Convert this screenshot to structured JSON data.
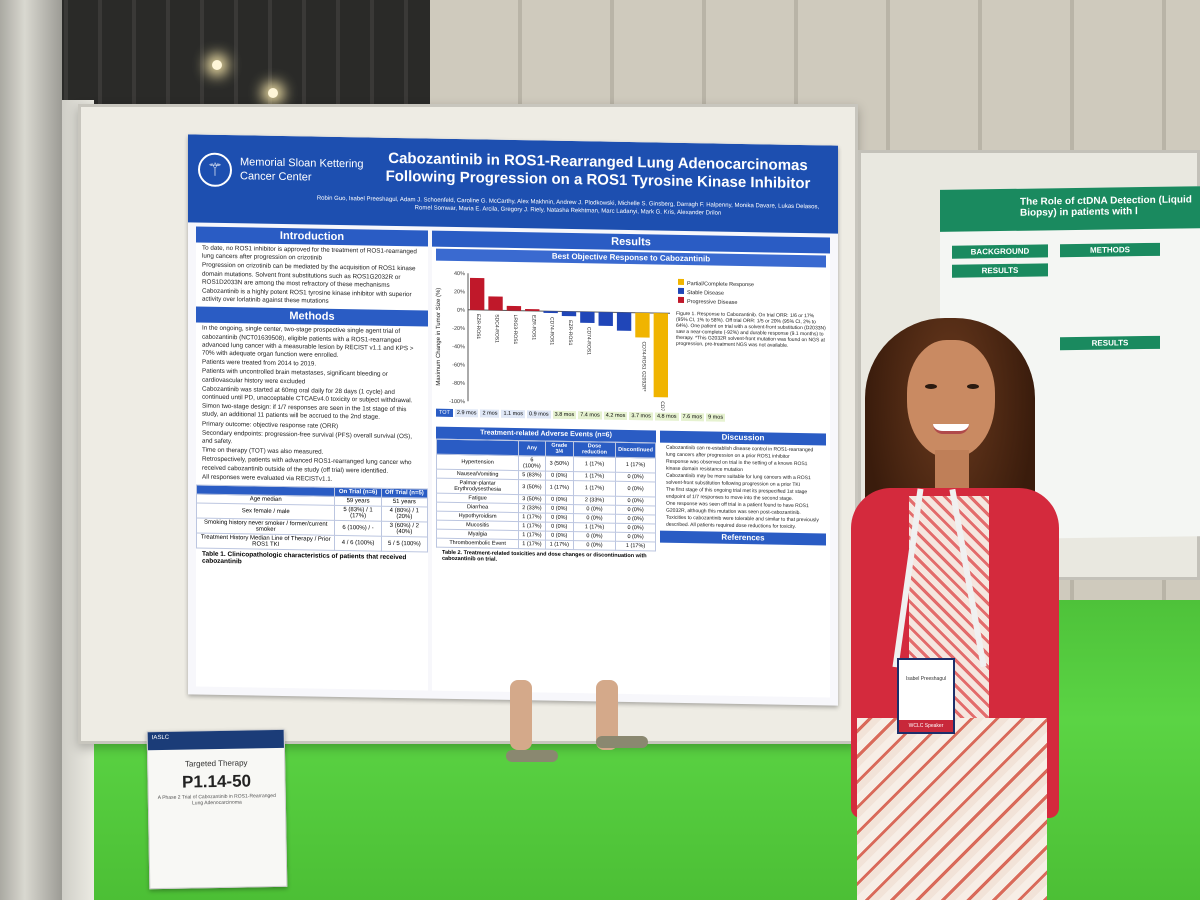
{
  "poster": {
    "institution": "Memorial Sloan Kettering Cancer Center",
    "title_line1": "Cabozantinib in ROS1-Rearranged Lung Adenocarcinomas",
    "title_line2": "Following Progression on a ROS1 Tyrosine Kinase Inhibitor",
    "authors": "Robin Guo, Isabel Preeshagul, Adam J. Schoenfeld, Caroline G. McCarthy, Alex Makhnin, Andrew J. Plodkowski, Michelle S. Ginsberg, Darragh F. Halpenny, Monika Davare, Lukas Delasos, Romel Somwar, Maria E. Arcila, Gregory J. Riely, Natasha Rekhtman, Marc Ladanyi, Mark G. Kris, Alexander Drilon",
    "sections": {
      "introduction": "Introduction",
      "methods": "Methods",
      "results": "Results",
      "discussion": "Discussion",
      "references": "References"
    },
    "intro_bullets": [
      "To date, no ROS1 inhibitor is approved for the treatment of ROS1-rearranged lung cancers after progression on crizotinib",
      "Progression on crizotinib can be mediated by the acquisition of ROS1 kinase domain mutations. Solvent front substitutions such as ROS1G2032R or ROS1D2033N are among the most refractory of these mechanisms",
      "Cabozantinib is a highly potent ROS1 tyrosine kinase inhibitor with superior activity over lorlatinib against these mutations"
    ],
    "methods_bullets": [
      "In the ongoing, single center, two-stage prospective single agent trial of cabozantinib (NCT01639508), eligible patients with a ROS1-rearranged advanced lung cancer with a measurable lesion by RECIST v1.1 and KPS > 70% with adequate organ function were enrolled.",
      "Patients were treated from 2014 to 2019.",
      "Patients with uncontrolled brain metastases, significant bleeding or cardiovascular history were excluded",
      "Cabozantinib was started at 60mg oral daily for 28 days (1 cycle) and continued until PD, unacceptable CTCAEv4.0 toxicity or subject withdrawal.",
      "Simon two-stage design: if 1/7 responses are seen in the 1st stage of this study, an additional 11 patients will be accrued to the 2nd stage.",
      "Primary outcome: objective response rate (ORR)",
      "Secondary endpoints: progression-free survival (PFS) overall survival (OS), and safety.",
      "Time on therapy (TOT) was also measured.",
      "Retrospectively, patients with advanced ROS1-rearranged lung cancer who received cabozantinib outside of the study (off trial) were identified.",
      "All responses were evaluated via RECISTv1.1."
    ],
    "table1": {
      "headers": [
        "",
        "On Trial (n=6)",
        "Off Trial (n=5)"
      ],
      "rows": [
        [
          "Age median",
          "59 years",
          "51 years"
        ],
        [
          "Sex female / male",
          "5 (83%) / 1 (17%)",
          "4 (80%) / 1 (20%)"
        ],
        [
          "Smoking history never smoker / former/current smoker",
          "6 (100%) / -",
          "3 (60%) / 2 (40%)"
        ],
        [
          "Treatment History Median Line of Therapy / Prior ROS1 TKI",
          "4 / 6 (100%)",
          "5 / 5 (100%)"
        ]
      ],
      "caption": "Table 1. Clinicopathologic characteristics of patients that received cabozantinib"
    },
    "figure1": {
      "title": "Best Objective Response to Cabozantinib",
      "ylabel": "Maximum Change in Tumor Size (%)",
      "legend": [
        "Partial/Complete Response",
        "Stable Disease",
        "Progressive Disease"
      ],
      "caption": "Figure 1. Response to Cabozantinib. On trial ORR: 1/6 or 17% (95% CI, 1% to 58%). Off trial ORR: 1/5 or 20% (95% CI, 2% to 64%). One patient on trial with a solvent-front substitution (D2033N) saw a near-complete (-92%) and durable response (9.1 months) to therapy. *This G2032R solvent-front mutation was found on NGS at progression, pre-treatment NGS was not available."
    },
    "tot_row": [
      "2.9 mos",
      "2 mos",
      "1.1 mos",
      "0.9 mos",
      "3.8 mos",
      "7.4 mos",
      "4.2 mos",
      "3.7 mos",
      "4.8 mos",
      "7.6 mos",
      "9 mos"
    ],
    "table2": {
      "title": "Treatment-related Adverse Events (n=6)",
      "headers": [
        "",
        "Any",
        "Grade 3/4",
        "Dose reduction",
        "Discontinued"
      ],
      "rows": [
        [
          "Hypertension",
          "6 (100%)",
          "3 (50%)",
          "1 (17%)",
          "1 (17%)"
        ],
        [
          "Nausea/Vomiting",
          "5 (83%)",
          "0 (0%)",
          "1 (17%)",
          "0 (0%)"
        ],
        [
          "Palmar-plantar Erythrodysesthesia",
          "3 (50%)",
          "1 (17%)",
          "1 (17%)",
          "0 (0%)"
        ],
        [
          "Fatigue",
          "3 (50%)",
          "0 (0%)",
          "2 (33%)",
          "0 (0%)"
        ],
        [
          "Diarrhea",
          "2 (33%)",
          "0 (0%)",
          "0 (0%)",
          "0 (0%)"
        ],
        [
          "Hypothyroidism",
          "1 (17%)",
          "0 (0%)",
          "0 (0%)",
          "0 (0%)"
        ],
        [
          "Mucositis",
          "1 (17%)",
          "0 (0%)",
          "1 (17%)",
          "0 (0%)"
        ],
        [
          "Myalgia",
          "1 (17%)",
          "0 (0%)",
          "0 (0%)",
          "0 (0%)"
        ],
        [
          "Thromboembolic Event",
          "1 (17%)",
          "1 (17%)",
          "0 (0%)",
          "1 (17%)"
        ]
      ],
      "caption": "Table 2. Treatment-related toxicities and dose changes or discontinuation with cabozantinib on trial."
    },
    "discussion_bullets": [
      "Cabozantinib can re-establish disease control in ROS1-rearranged lung cancers after progression on a prior ROS1 inhibitor",
      "Response was observed on trial in the setting of a known ROS1 kinase domain resistance mutation",
      "Cabozantinib may be more suitable for lung cancers with a ROS1 solvent-front substitution following progression on a prior TKI",
      "The first stage of this ongoing trial met its prespecified 1st stage endpoint of 1/7 responses to move into the second stage.",
      "One response was seen off trial in a patient found to have ROS1 G2032R, although this mutation was seen post-cabozantinib.",
      "Toxicities to cabozantinib were tolerable and similar to that previously described. All patients required dose reductions for toxicity."
    ]
  },
  "chart_data": {
    "type": "bar",
    "title": "Best Objective Response to Cabozantinib",
    "ylabel": "Maximum Change in Tumor Size (%)",
    "ylim": [
      -100,
      40
    ],
    "categories": [
      "EZR-ROS1",
      "SDC4-ROS1",
      "LRIG3-ROS1",
      "EZR-ROS1",
      "CD74-ROS1",
      "EZR-ROS1",
      "CD74-ROS1",
      "",
      "",
      "CD74-ROS1 G2032R*",
      "CD74-ROS1 D2033N"
    ],
    "values": [
      35,
      15,
      5,
      2,
      -2,
      -5,
      -12,
      -15,
      -20,
      -27,
      -92
    ],
    "series_status": [
      "progressive",
      "progressive",
      "progressive",
      "progressive",
      "stable",
      "stable",
      "stable",
      "stable",
      "stable",
      "partial",
      "partial"
    ],
    "colors": {
      "progressive": "#c0182a",
      "stable": "#2046b8",
      "partial": "#f0b400"
    },
    "legend": [
      "Partial/Complete Response",
      "Stable Disease",
      "Progressive Disease"
    ]
  },
  "card": {
    "org": "IASLC",
    "topic": "Targeted Therapy",
    "number": "P1.14-50",
    "subtitle": "A Phase 2 Trial of Cabozantinib in ROS1-Rearranged Lung Adenocarcinoma"
  },
  "poster2": {
    "title": "The Role of ctDNA Detection (Liquid Biopsy) in patients with l",
    "sections": [
      "BACKGROUND",
      "METHODS",
      "RESULTS",
      "RESULTS"
    ]
  },
  "badge": {
    "name": "Isabel Preeshagul",
    "type": "WCLC Speaker"
  }
}
